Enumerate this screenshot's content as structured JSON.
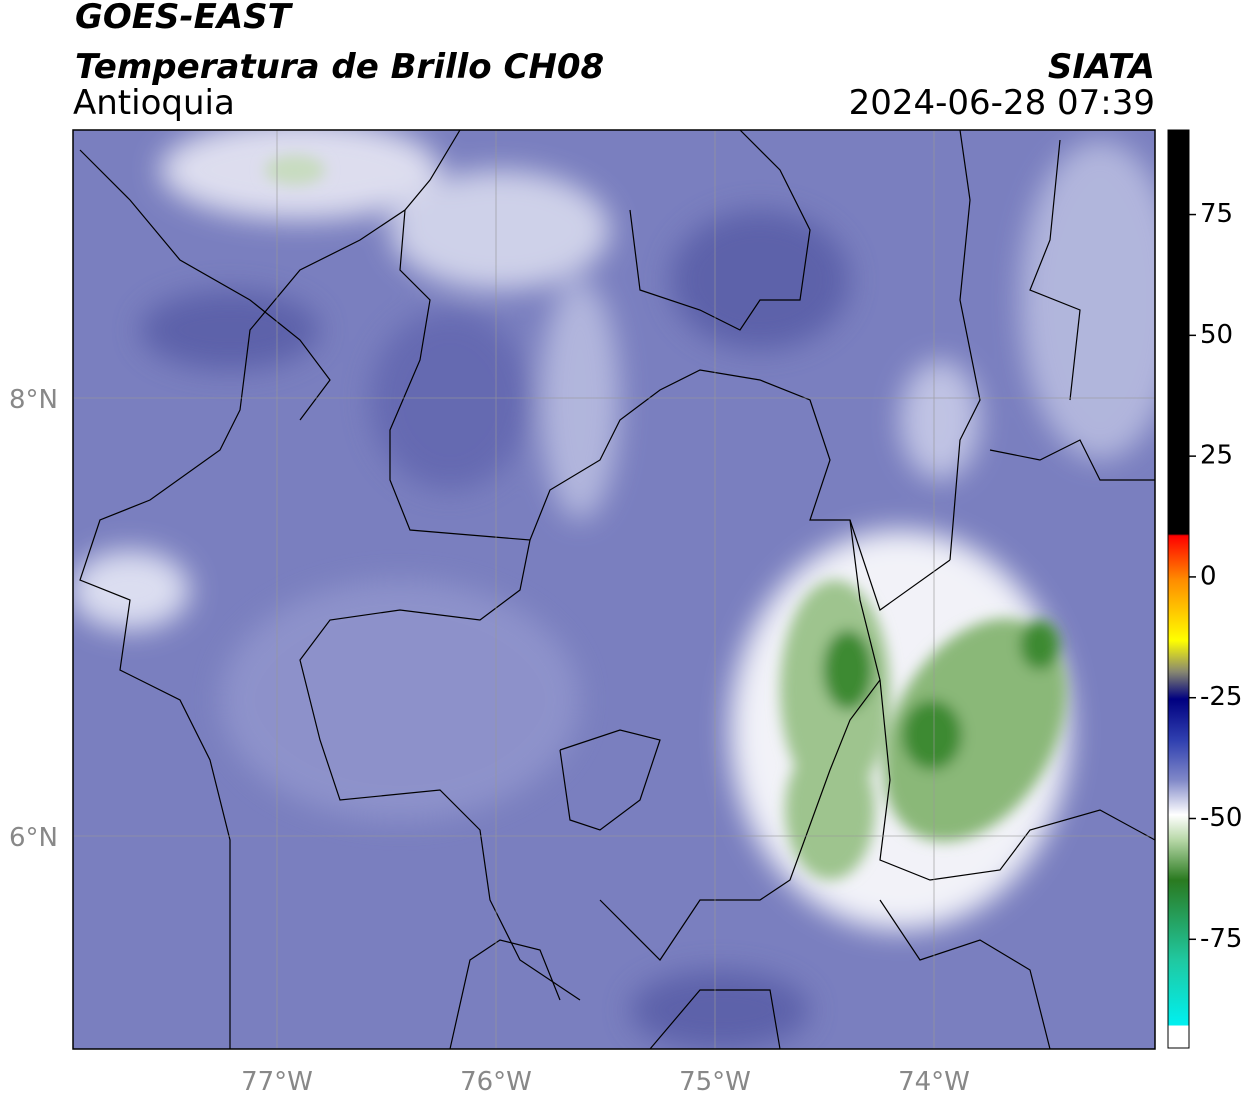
{
  "header": {
    "line1": "GOES-EAST",
    "line2": "Temperatura de Brillo CH08",
    "region": "Antioquia",
    "source": "SIATA",
    "datetime": "2024-06-28 07:39"
  },
  "map": {
    "lon_labels": [
      "77°W",
      "76°W",
      "75°W",
      "74°W"
    ],
    "lat_labels": [
      "8°N",
      "6°N"
    ]
  },
  "colorbar": {
    "lim": [
      -97.5,
      92.5
    ],
    "ticks": [
      75,
      50,
      25,
      0,
      -25,
      -50,
      -75
    ]
  }
}
